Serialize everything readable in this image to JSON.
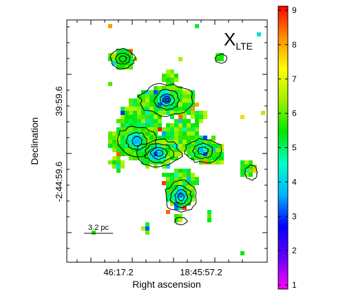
{
  "chart_data": {
    "type": "heatmap",
    "title": "",
    "panel_label": {
      "main": "X",
      "subscript": "LTE",
      "position": "top-right"
    },
    "xlabel": "Right ascension",
    "ylabel": "Declination",
    "x_tick_labels": [
      "46:17.2",
      "18:45:57.2"
    ],
    "y_tick_labels": [
      "39:59.6",
      "-2:44:59.6"
    ],
    "scale_bar": {
      "label": "3.2 pc"
    },
    "colorbar": {
      "range": [
        1,
        9
      ],
      "ticks": [
        1,
        2,
        3,
        4,
        5,
        6,
        7,
        8,
        9
      ],
      "tick_labels": [
        "1",
        "2",
        "3",
        "4",
        "5",
        "6",
        "7",
        "8",
        "9"
      ],
      "colormap": [
        "#ff00ff",
        "#6600ff",
        "#0000ff",
        "#00b4ff",
        "#00ffc8",
        "#00e600",
        "#a0f000",
        "#ffff00",
        "#ff9000",
        "#ff0000"
      ]
    },
    "grid": false,
    "contours": {
      "color": "#000000",
      "levels_drawn": 6
    },
    "clumps": [
      {
        "id": "north-knot",
        "peak": [
          0.28,
          0.84
        ],
        "value": 5.3
      },
      {
        "id": "east-knot",
        "peak": [
          0.5,
          0.67
        ],
        "value": 3.0
      },
      {
        "id": "west-ridge",
        "peak": [
          0.35,
          0.5
        ],
        "value": 3.5
      },
      {
        "id": "central-clump",
        "peak": [
          0.45,
          0.44
        ],
        "value": 3.2
      },
      {
        "id": "east-arm",
        "peak": [
          0.68,
          0.46
        ],
        "value": 4.5
      },
      {
        "id": "south-clump",
        "peak": [
          0.57,
          0.27
        ],
        "value": 3.3
      }
    ]
  }
}
